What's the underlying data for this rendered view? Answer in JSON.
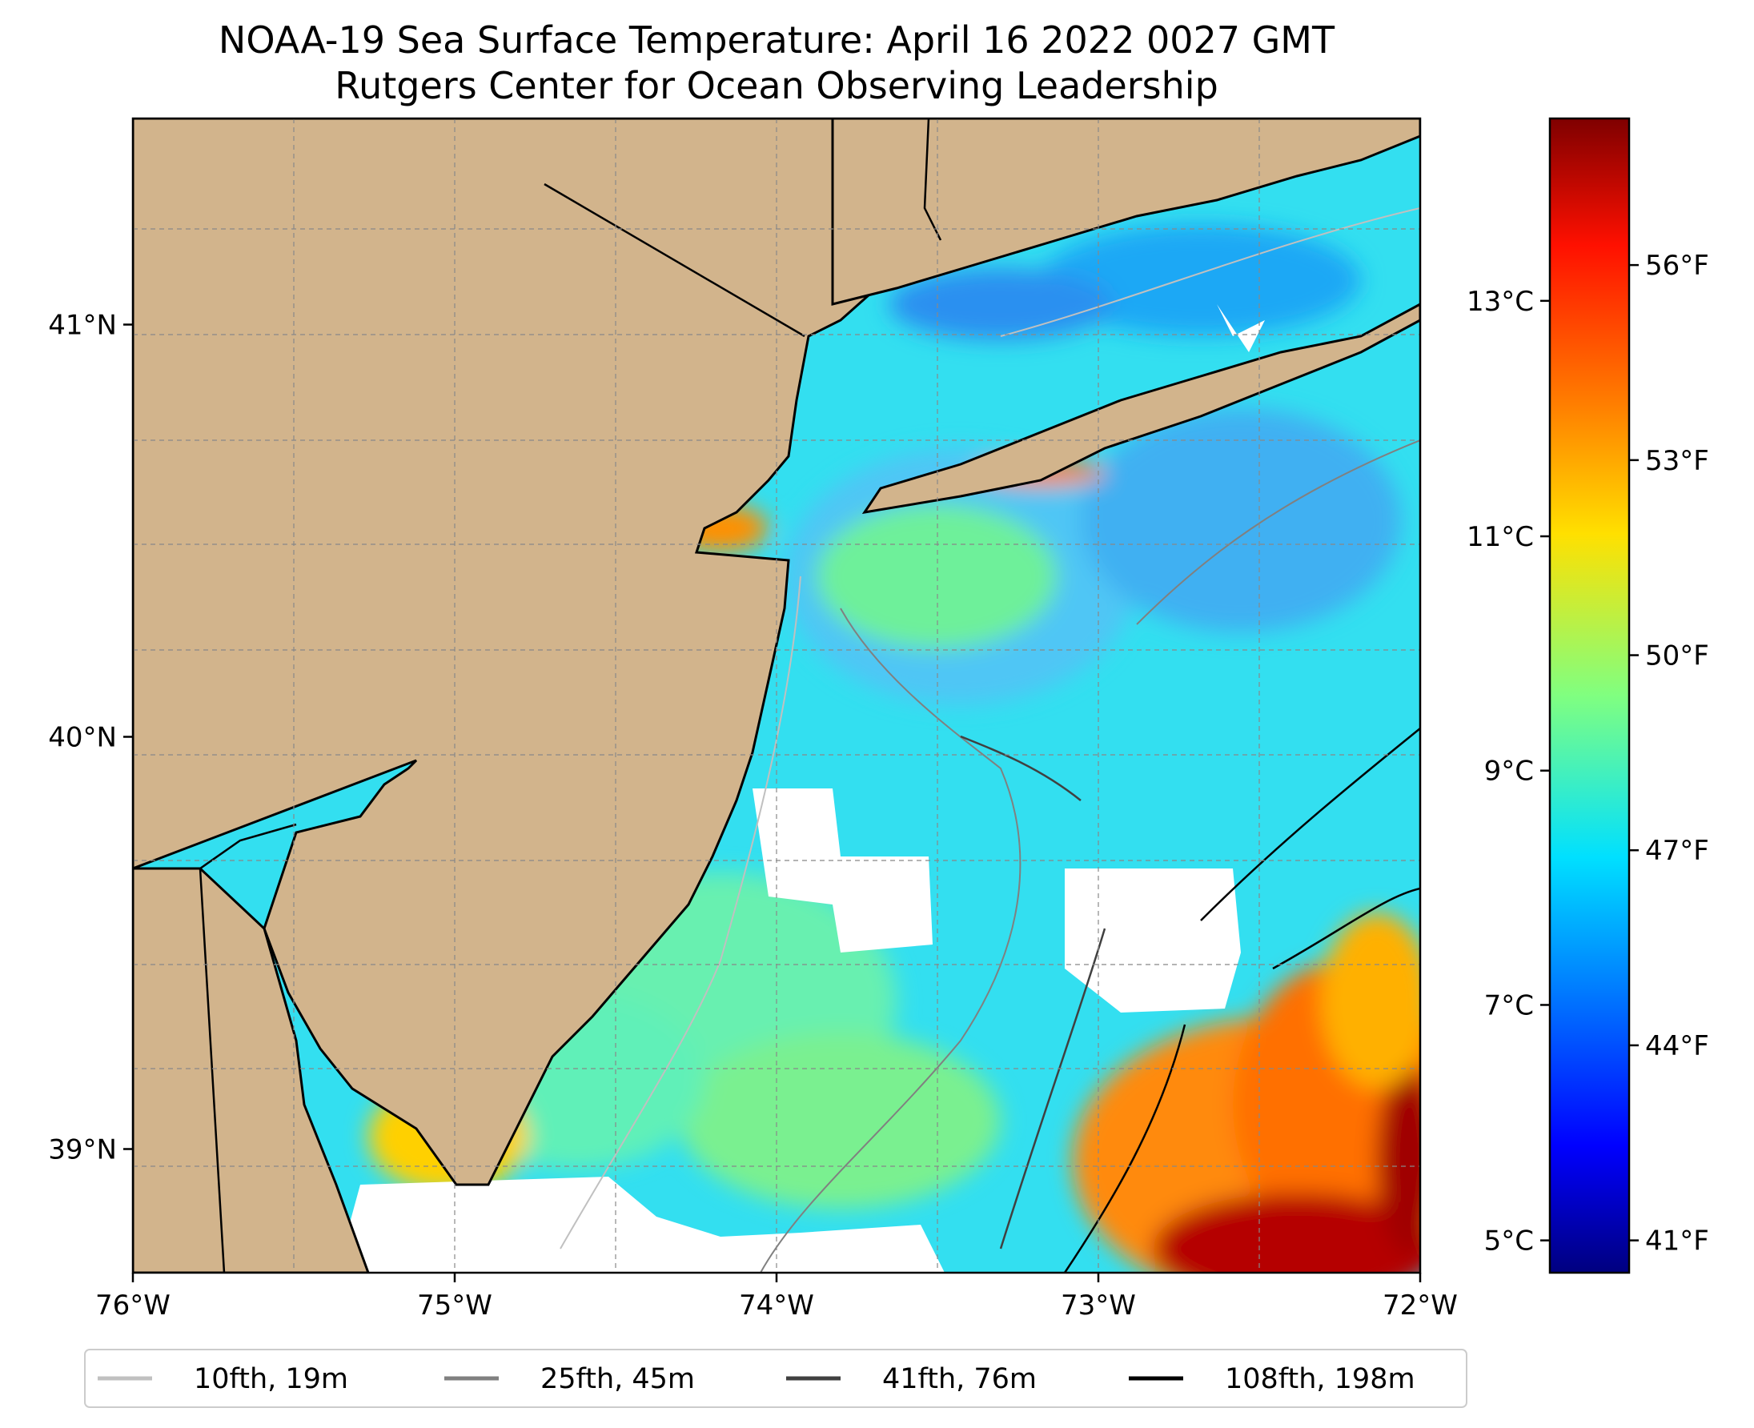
{
  "figure": {
    "title_line1": "NOAA-19 Sea Surface Temperature: April 16 2022 0027 GMT",
    "title_line2": "Rutgers Center for Ocean Observing Leadership"
  },
  "map": {
    "lon_range": [
      -76,
      -72
    ],
    "lat_range": [
      38.7,
      41.5
    ],
    "x_ticks": [
      {
        "value": -76,
        "label": "76°W"
      },
      {
        "value": -75,
        "label": "75°W"
      },
      {
        "value": -74,
        "label": "74°W"
      },
      {
        "value": -73,
        "label": "73°W"
      },
      {
        "value": -72,
        "label": "72°W"
      }
    ],
    "y_ticks": [
      {
        "value": 41,
        "label": "41°N"
      },
      {
        "value": 40,
        "label": "40°N"
      },
      {
        "value": 39,
        "label": "39°N"
      }
    ],
    "land_color": "#d2b48c",
    "no_data_color": "#ffffff",
    "grid": true
  },
  "colorbar": {
    "colormap": "jet",
    "celsius_ticks": [
      "13°C",
      "11°C",
      "9°C",
      "7°C",
      "5°C"
    ],
    "fahrenheit_ticks": [
      "56°F",
      "53°F",
      "50°F",
      "47°F",
      "44°F",
      "41°F"
    ]
  },
  "legend": {
    "items": [
      {
        "label": "10fth, 19m",
        "color": "#c0c0c0"
      },
      {
        "label": "25fth, 45m",
        "color": "#808080"
      },
      {
        "label": "41fth, 76m",
        "color": "#404040"
      },
      {
        "label": "108fth, 198m",
        "color": "#000000"
      }
    ]
  }
}
